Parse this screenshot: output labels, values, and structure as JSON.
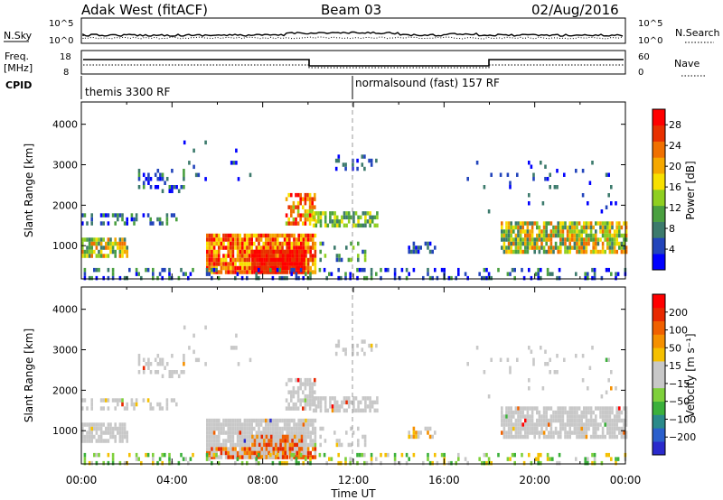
{
  "header": {
    "station": "Adak West (fitACF)",
    "beam": "Beam 03",
    "date": "02/Aug/2016"
  },
  "panel_labels": {
    "nsky": "N.Sky",
    "freq_line1": "Freq.",
    "freq_line2": "[MHz]",
    "cpid": "CPID",
    "nsearch": "N.Search",
    "nave": "Nave",
    "nsky_tick_hi": "10^5",
    "nsky_tick_lo": "10^0",
    "nsearch_tick_hi": "10^5",
    "nsearch_tick_lo": "10^0",
    "freq_tick_hi": "18",
    "freq_tick_lo": "8",
    "nave_tick_hi": "60",
    "nave_tick_lo": "0"
  },
  "cpid_programs": [
    {
      "label": "themis 3300 RF",
      "start_h": 0,
      "end_h": 12
    },
    {
      "label": "normalsound (fast) 157 RF",
      "start_h": 12,
      "end_h": 24
    }
  ],
  "chart_data": [
    {
      "type": "heatmap",
      "name": "power",
      "ylabel": "Slant Range [km]",
      "xlabel": "Time UT",
      "xlim": [
        0,
        24
      ],
      "ylim": [
        180,
        4550
      ],
      "yticks": [
        "1000",
        "2000",
        "3000",
        "4000"
      ],
      "colorbar": {
        "label": "Power [dB]",
        "ticks": [
          "4",
          "8",
          "12",
          "16",
          "20",
          "24",
          "28"
        ],
        "range": [
          0,
          31
        ],
        "colors": [
          "#0000ff",
          "#2244bb",
          "#3c7a6c",
          "#4aa040",
          "#8fcf20",
          "#f7e000",
          "#f5a800",
          "#f07000",
          "#e83000",
          "#ff0000"
        ]
      }
    },
    {
      "type": "heatmap",
      "name": "velocity",
      "ylabel": "Slant Range [km]",
      "xlabel": "Time UT",
      "xlim": [
        0,
        24
      ],
      "ylim": [
        180,
        4550
      ],
      "yticks": [
        "1000",
        "2000",
        "3000",
        "4000"
      ],
      "xticks": [
        "00:00",
        "04:00",
        "08:00",
        "12:00",
        "16:00",
        "20:00",
        "00:00"
      ],
      "colorbar": {
        "label": "Velocity [m s⁻¹]",
        "ticks": [
          "200",
          "100",
          "50",
          "15",
          "−15",
          "−50",
          "−100",
          "−200"
        ],
        "colors": [
          "#2a2acc",
          "#2a5fcc",
          "#2a8a8a",
          "#3bb03b",
          "#7ed03b",
          "#c8c8c8",
          "#c8c8c8",
          "#f5c000",
          "#f59000",
          "#f06000",
          "#e82800",
          "#ff0000"
        ]
      }
    }
  ]
}
